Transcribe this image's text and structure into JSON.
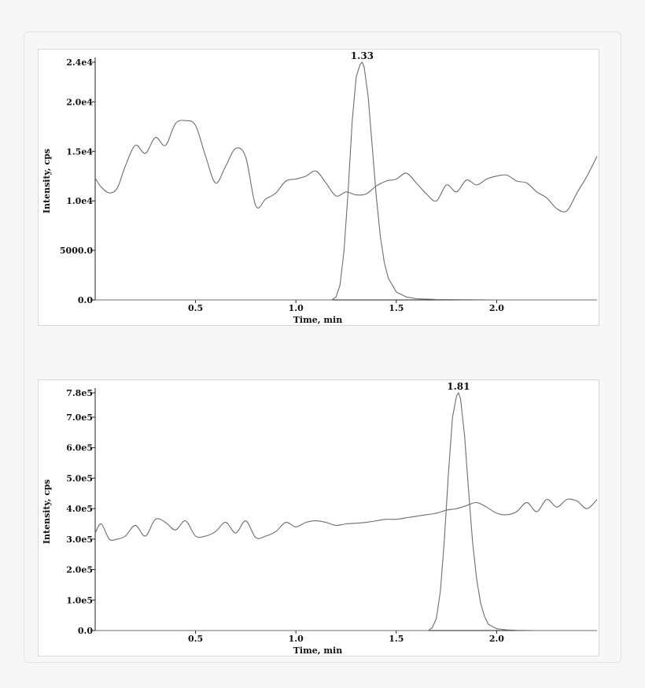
{
  "chart_data": [
    {
      "type": "line",
      "xlabel": "Time, min",
      "ylabel": "Intensity, cps",
      "xlim": [
        0,
        2.5
      ],
      "ylim": [
        0,
        24000
      ],
      "xticks": [
        {
          "value": 0.5,
          "label": "0.5"
        },
        {
          "value": 1.0,
          "label": "1.0"
        },
        {
          "value": 1.5,
          "label": "1.5"
        },
        {
          "value": 2.0,
          "label": "2.0"
        }
      ],
      "yticks": [
        {
          "value": 0,
          "label": "0.0"
        },
        {
          "value": 5000,
          "label": "5000.0"
        },
        {
          "value": 10000,
          "label": "1.0e4"
        },
        {
          "value": 15000,
          "label": "1.5e4"
        },
        {
          "value": 20000,
          "label": "2.0e4"
        },
        {
          "value": 24000,
          "label": "2.4e4"
        }
      ],
      "peak": {
        "x": 1.33,
        "label": "1.33",
        "height": 24000
      },
      "series": [
        {
          "kind": "peak",
          "x": [
            0,
            1.18,
            1.2,
            1.22,
            1.24,
            1.26,
            1.28,
            1.3,
            1.32,
            1.33,
            1.34,
            1.36,
            1.38,
            1.4,
            1.42,
            1.44,
            1.46,
            1.5,
            1.55,
            1.6,
            1.7,
            1.8,
            2.0,
            2.5
          ],
          "y": [
            0,
            0,
            300,
            1500,
            5000,
            11000,
            18000,
            22500,
            23800,
            24000,
            23500,
            20500,
            15500,
            10500,
            6500,
            3800,
            2200,
            800,
            300,
            120,
            50,
            20,
            0,
            0
          ]
        },
        {
          "kind": "baseline",
          "x": [
            0,
            0.03,
            0.07,
            0.11,
            0.15,
            0.2,
            0.25,
            0.3,
            0.35,
            0.4,
            0.45,
            0.5,
            0.55,
            0.6,
            0.65,
            0.7,
            0.75,
            0.8,
            0.85,
            0.9,
            0.95,
            1.0,
            1.05,
            1.1,
            1.15,
            1.2,
            1.25,
            1.3,
            1.35,
            1.4,
            1.45,
            1.5,
            1.55,
            1.6,
            1.65,
            1.7,
            1.75,
            1.8,
            1.85,
            1.9,
            1.95,
            2.0,
            2.05,
            2.1,
            2.15,
            2.2,
            2.25,
            2.3,
            2.35,
            2.4,
            2.45,
            2.5
          ],
          "y": [
            12300,
            11400,
            10800,
            11300,
            13500,
            15600,
            14800,
            16400,
            15600,
            17800,
            18100,
            17600,
            14500,
            11800,
            13500,
            15300,
            14400,
            9500,
            10200,
            10800,
            12000,
            12200,
            12500,
            13000,
            11800,
            10500,
            10900,
            10600,
            10700,
            11500,
            12000,
            12200,
            12800,
            11800,
            10700,
            10000,
            11600,
            10900,
            12100,
            11600,
            12200,
            12500,
            12600,
            12000,
            11800,
            10900,
            10300,
            9200,
            9000,
            10800,
            12500,
            14500
          ]
        }
      ]
    },
    {
      "type": "line",
      "xlabel": "Time, min",
      "ylabel": "Intensity, cps",
      "xlim": [
        0,
        2.5
      ],
      "ylim": [
        0,
        780000
      ],
      "xticks": [
        {
          "value": 0.5,
          "label": "0.5"
        },
        {
          "value": 1.0,
          "label": "1.0"
        },
        {
          "value": 1.5,
          "label": "1.5"
        },
        {
          "value": 2.0,
          "label": "2.0"
        }
      ],
      "yticks": [
        {
          "value": 0,
          "label": "0.0"
        },
        {
          "value": 100000,
          "label": "1.0e5"
        },
        {
          "value": 200000,
          "label": "2.0e5"
        },
        {
          "value": 300000,
          "label": "3.0e5"
        },
        {
          "value": 400000,
          "label": "4.0e5"
        },
        {
          "value": 500000,
          "label": "5.0e5"
        },
        {
          "value": 600000,
          "label": "6.0e5"
        },
        {
          "value": 700000,
          "label": "7.0e5"
        },
        {
          "value": 780000,
          "label": "7.8e5"
        }
      ],
      "peak": {
        "x": 1.81,
        "label": "1.81",
        "height": 780000
      },
      "series": [
        {
          "kind": "peak",
          "x": [
            0,
            1.66,
            1.68,
            1.7,
            1.72,
            1.74,
            1.76,
            1.78,
            1.8,
            1.81,
            1.82,
            1.84,
            1.86,
            1.88,
            1.9,
            1.92,
            1.94,
            1.96,
            2.0,
            2.05,
            2.1,
            2.2,
            2.5
          ],
          "y": [
            0,
            0,
            10000,
            40000,
            130000,
            300000,
            520000,
            700000,
            770000,
            780000,
            760000,
            640000,
            460000,
            290000,
            170000,
            90000,
            45000,
            20000,
            6000,
            2000,
            800,
            0,
            0
          ]
        },
        {
          "kind": "baseline",
          "x": [
            0,
            0.03,
            0.07,
            0.11,
            0.15,
            0.2,
            0.25,
            0.3,
            0.35,
            0.4,
            0.45,
            0.5,
            0.55,
            0.6,
            0.65,
            0.7,
            0.75,
            0.8,
            0.85,
            0.9,
            0.95,
            1.0,
            1.05,
            1.1,
            1.15,
            1.2,
            1.25,
            1.3,
            1.35,
            1.4,
            1.45,
            1.5,
            1.55,
            1.6,
            1.65,
            1.7,
            1.75,
            1.8,
            1.85,
            1.9,
            1.95,
            2.0,
            2.05,
            2.1,
            2.15,
            2.2,
            2.25,
            2.3,
            2.35,
            2.4,
            2.45,
            2.5
          ],
          "y": [
            320000,
            350000,
            300000,
            300000,
            310000,
            345000,
            310000,
            365000,
            355000,
            330000,
            360000,
            310000,
            310000,
            325000,
            355000,
            320000,
            360000,
            305000,
            310000,
            325000,
            355000,
            340000,
            355000,
            360000,
            355000,
            345000,
            350000,
            352000,
            355000,
            360000,
            365000,
            365000,
            370000,
            375000,
            380000,
            385000,
            395000,
            400000,
            410000,
            420000,
            405000,
            385000,
            380000,
            390000,
            420000,
            390000,
            430000,
            405000,
            430000,
            425000,
            400000,
            430000
          ]
        }
      ]
    }
  ]
}
